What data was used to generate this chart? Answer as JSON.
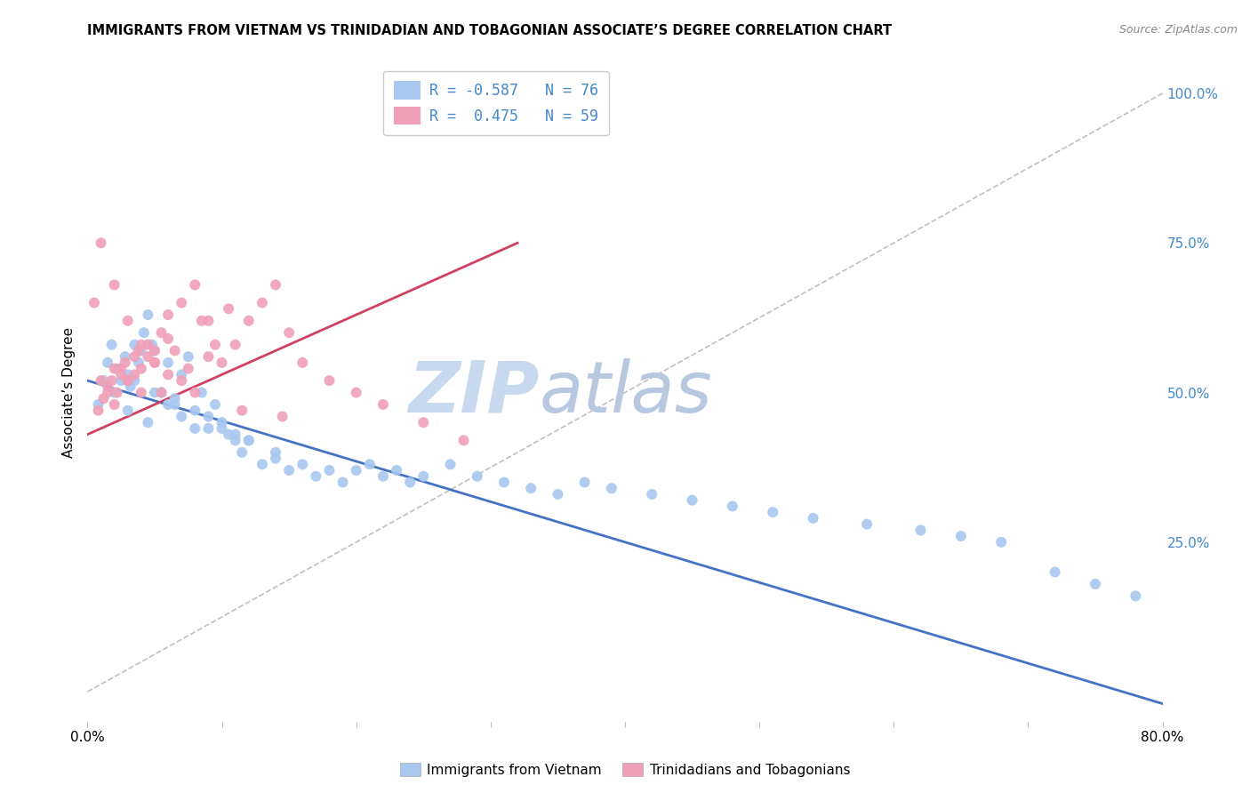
{
  "title": "IMMIGRANTS FROM VIETNAM VS TRINIDADIAN AND TOBAGONIAN ASSOCIATE’S DEGREE CORRELATION CHART",
  "source": "Source: ZipAtlas.com",
  "ylabel": "Associate’s Degree",
  "legend_blue_label": "Immigrants from Vietnam",
  "legend_pink_label": "Trinidadians and Tobagonians",
  "legend_blue_r": "R = -0.587",
  "legend_blue_n": "N = 76",
  "legend_pink_r": "R =  0.475",
  "legend_pink_n": "N = 59",
  "blue_color": "#a8c8f0",
  "pink_color": "#f0a0b8",
  "line_blue_color": "#4472c4",
  "line_pink_color": "#d04060",
  "diagonal_color": "#c0c0c0",
  "background_color": "#ffffff",
  "grid_color": "#e0e0e0",
  "right_axis_color": "#4488cc",
  "text_color": "#4488cc",
  "blue_scatter_x": [
    0.8,
    1.2,
    1.5,
    1.8,
    2.0,
    2.2,
    2.5,
    2.8,
    3.0,
    3.2,
    3.5,
    3.8,
    4.0,
    4.2,
    4.5,
    4.8,
    5.0,
    5.5,
    6.0,
    6.5,
    7.0,
    7.5,
    8.0,
    8.5,
    9.0,
    9.5,
    10.0,
    10.5,
    11.0,
    11.5,
    12.0,
    13.0,
    14.0,
    15.0,
    16.0,
    17.0,
    18.0,
    19.0,
    20.0,
    21.0,
    22.0,
    23.0,
    24.0,
    25.0,
    27.0,
    29.0,
    31.0,
    33.0,
    35.0,
    37.0,
    39.0,
    42.0,
    45.0,
    48.0,
    51.0,
    54.0,
    58.0,
    62.0,
    65.0,
    68.0,
    72.0,
    75.0,
    78.0,
    3.0,
    4.5,
    6.0,
    8.0,
    10.0,
    12.0,
    5.0,
    7.0,
    9.0,
    11.0,
    3.5,
    6.5,
    14.0
  ],
  "blue_scatter_y": [
    48.0,
    52.0,
    55.0,
    58.0,
    50.0,
    54.0,
    52.0,
    56.0,
    53.0,
    51.0,
    58.0,
    55.0,
    57.0,
    60.0,
    63.0,
    58.0,
    57.0,
    50.0,
    55.0,
    48.0,
    53.0,
    56.0,
    44.0,
    50.0,
    46.0,
    48.0,
    45.0,
    43.0,
    42.0,
    40.0,
    42.0,
    38.0,
    40.0,
    37.0,
    38.0,
    36.0,
    37.0,
    35.0,
    37.0,
    38.0,
    36.0,
    37.0,
    35.0,
    36.0,
    38.0,
    36.0,
    35.0,
    34.0,
    33.0,
    35.0,
    34.0,
    33.0,
    32.0,
    31.0,
    30.0,
    29.0,
    28.0,
    27.0,
    26.0,
    25.0,
    20.0,
    18.0,
    16.0,
    47.0,
    45.0,
    48.0,
    47.0,
    44.0,
    42.0,
    50.0,
    46.0,
    44.0,
    43.0,
    52.0,
    49.0,
    39.0
  ],
  "pink_scatter_x": [
    0.5,
    0.8,
    1.0,
    1.2,
    1.5,
    1.8,
    2.0,
    2.2,
    2.5,
    2.8,
    3.0,
    3.5,
    4.0,
    4.5,
    5.0,
    5.5,
    6.0,
    7.0,
    8.0,
    9.0,
    10.0,
    11.0,
    12.0,
    13.0,
    14.0,
    15.0,
    16.0,
    18.0,
    20.0,
    22.0,
    25.0,
    28.0,
    2.0,
    3.0,
    4.0,
    5.0,
    6.5,
    8.5,
    10.5,
    3.5,
    4.5,
    6.0,
    7.5,
    9.5,
    1.5,
    2.5,
    3.8,
    5.5,
    7.0,
    9.0,
    11.5,
    14.5,
    1.0,
    2.0,
    3.0,
    4.0,
    5.0,
    6.0,
    8.0
  ],
  "pink_scatter_y": [
    65.0,
    47.0,
    52.0,
    49.0,
    50.0,
    52.0,
    54.0,
    50.0,
    53.0,
    55.0,
    52.0,
    56.0,
    54.0,
    58.0,
    57.0,
    60.0,
    63.0,
    65.0,
    68.0,
    62.0,
    55.0,
    58.0,
    62.0,
    65.0,
    68.0,
    60.0,
    55.0,
    52.0,
    50.0,
    48.0,
    45.0,
    42.0,
    48.0,
    52.0,
    50.0,
    55.0,
    57.0,
    62.0,
    64.0,
    53.0,
    56.0,
    59.0,
    54.0,
    58.0,
    51.0,
    54.0,
    57.0,
    50.0,
    52.0,
    56.0,
    47.0,
    46.0,
    75.0,
    68.0,
    62.0,
    58.0,
    55.0,
    53.0,
    50.0
  ],
  "blue_line_x": [
    0.0,
    80.0
  ],
  "blue_line_y": [
    52.0,
    -2.0
  ],
  "pink_line_x": [
    0.0,
    32.0
  ],
  "pink_line_y": [
    43.0,
    75.0
  ],
  "diag_line_x": [
    0.0,
    80.0
  ],
  "diag_line_y": [
    0.0,
    100.0
  ],
  "xlim": [
    0.0,
    80.0
  ],
  "ylim": [
    -5.0,
    105.0
  ],
  "xticks": [
    0.0,
    10.0,
    20.0,
    30.0,
    40.0,
    50.0,
    60.0,
    70.0,
    80.0
  ],
  "yticks_right": [
    25.0,
    50.0,
    75.0,
    100.0
  ],
  "ytick_labels_right": [
    "25.0%",
    "50.0%",
    "75.0%",
    "100.0%"
  ],
  "watermark_zip": "ZIP",
  "watermark_atlas": "atlas",
  "watermark_color": "#c8d8ee"
}
